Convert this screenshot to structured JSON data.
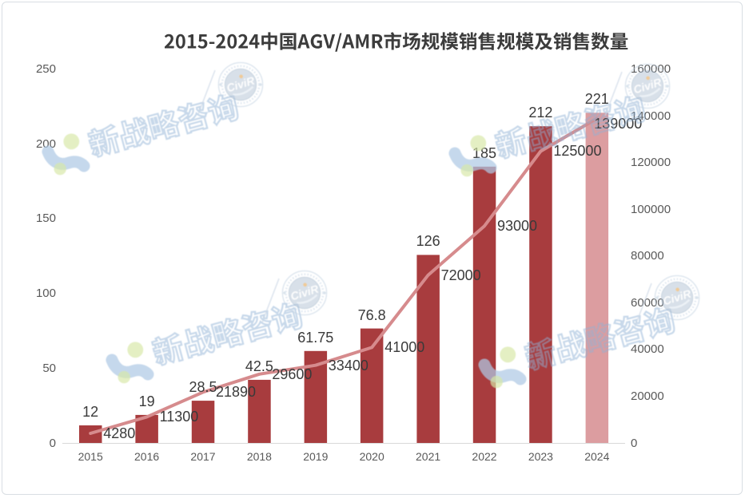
{
  "chart_data": {
    "type": "combo-bar-line",
    "title": "2015-2024中国AGV/AMR市场规模销售规模及销售数量",
    "categories": [
      "2015",
      "2016",
      "2017",
      "2018",
      "2019",
      "2020",
      "2021",
      "2022",
      "2023",
      "2024"
    ],
    "series": [
      {
        "type": "bar",
        "axis": "left",
        "values": [
          12,
          19,
          28.5,
          42.5,
          61.75,
          76.8,
          126,
          185,
          212,
          221
        ],
        "labels": [
          "12",
          "19",
          "28.5",
          "42.5",
          "61.75",
          "76.8",
          "126",
          "185",
          "212",
          "221"
        ]
      },
      {
        "type": "line",
        "axis": "right",
        "values": [
          4280,
          11300,
          21890,
          29600,
          33400,
          41000,
          72000,
          93000,
          125000,
          139000
        ],
        "labels": [
          "4280",
          "11300",
          "21890",
          "29600",
          "33400",
          "41000",
          "72000",
          "93000",
          "125000",
          "139000"
        ]
      }
    ],
    "left_axis": {
      "min": 0,
      "max": 250,
      "ticks": [
        "0",
        "50",
        "100",
        "150",
        "200",
        "250"
      ]
    },
    "right_axis": {
      "min": 0,
      "max": 160000,
      "ticks": [
        "0",
        "20000",
        "40000",
        "60000",
        "80000",
        "100000",
        "120000",
        "140000",
        "160000"
      ]
    },
    "grid": "off",
    "legend": "none"
  },
  "watermark": {
    "text": "新战略咨询",
    "stamp_text": "CiviR"
  },
  "colors": {
    "bar": "#a83c3e",
    "bar_highlight": "#dc9da0",
    "line": "#d68b8d",
    "title_text": "#3c3c3c",
    "data_label": "#3a3a3a",
    "axis_label": "#595959",
    "axis_line": "#d9d9d9",
    "card_border": "#d9dee3",
    "watermark_blue": "#8db0d6",
    "watermark_green": "#cfe39b"
  }
}
